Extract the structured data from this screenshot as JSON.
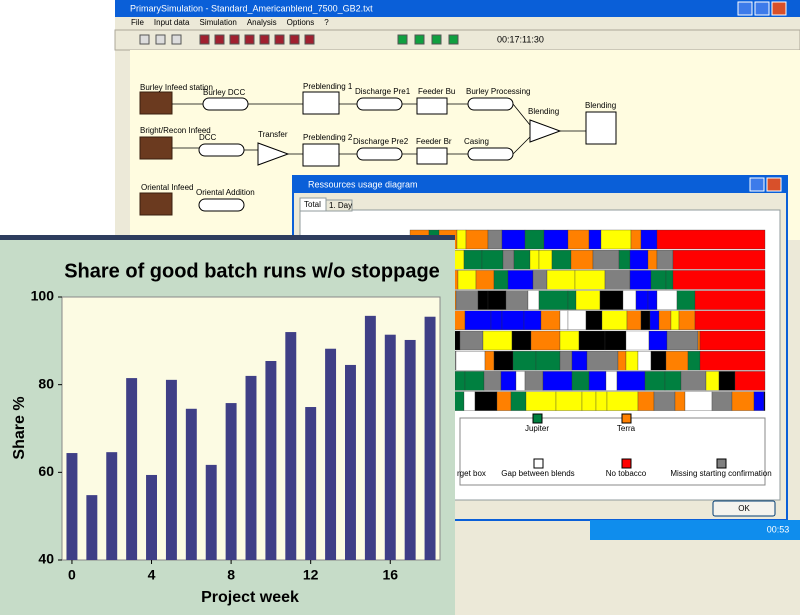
{
  "window": {
    "title": "PrimarySimulation - Standard_Americanblend_7500_GB2.txt",
    "menu": [
      "File",
      "Input data",
      "Simulation",
      "Analysis",
      "Options",
      "?"
    ],
    "clock": "00:17:11:30"
  },
  "flowsheet": {
    "labels": [
      "Burley Infeed station",
      "Burley DCC",
      "Preblending 1",
      "Discharge Pre1",
      "Feeder Bu",
      "Burley Processing",
      "Blending",
      "Blending",
      "Bright/Recon Infeed",
      "DCC",
      "Transfer",
      "Preblending 2",
      "Discharge Pre2",
      "Feeder Br",
      "Casing",
      "Oriental Infeed",
      "Oriental Addition"
    ]
  },
  "dialog": {
    "title": "Ressources usage diagram",
    "tabs": [
      "Total",
      "1. Day"
    ],
    "legend": [
      {
        "label": "Jupiter",
        "color": "#008040"
      },
      {
        "label": "Terra",
        "color": "#ff8000"
      },
      {
        "label": "rget box"
      },
      {
        "label": "Gap between blends",
        "color": "#ffffff"
      },
      {
        "label": "No tobacco",
        "color": "#ff0000"
      },
      {
        "label": "Missing starting confirmation",
        "color": "#808080"
      }
    ],
    "button": "OK"
  },
  "taskbar": {
    "time": "00:53"
  },
  "chart_data": {
    "type": "bar",
    "title": "Share of good batch runs w/o stoppage",
    "x_label": "Project week",
    "y_label": "Share %",
    "x": [
      0,
      1,
      2,
      3,
      4,
      5,
      6,
      7,
      8,
      9,
      10,
      11,
      12,
      13,
      14,
      15,
      16,
      17,
      18
    ],
    "values": [
      64.4,
      54.8,
      64.6,
      81.5,
      59.4,
      81.1,
      74.5,
      61.7,
      75.8,
      82,
      85.4,
      92,
      74.9,
      88.2,
      84.5,
      95.7,
      91.4,
      90.2,
      95.5
    ],
    "color": "#3f3f86",
    "xlim": [
      -0.5,
      18.5
    ],
    "xticks": [
      0,
      4,
      8,
      12,
      16
    ],
    "ylim": [
      40,
      100
    ],
    "yticks": [
      40,
      60,
      80,
      100
    ]
  }
}
